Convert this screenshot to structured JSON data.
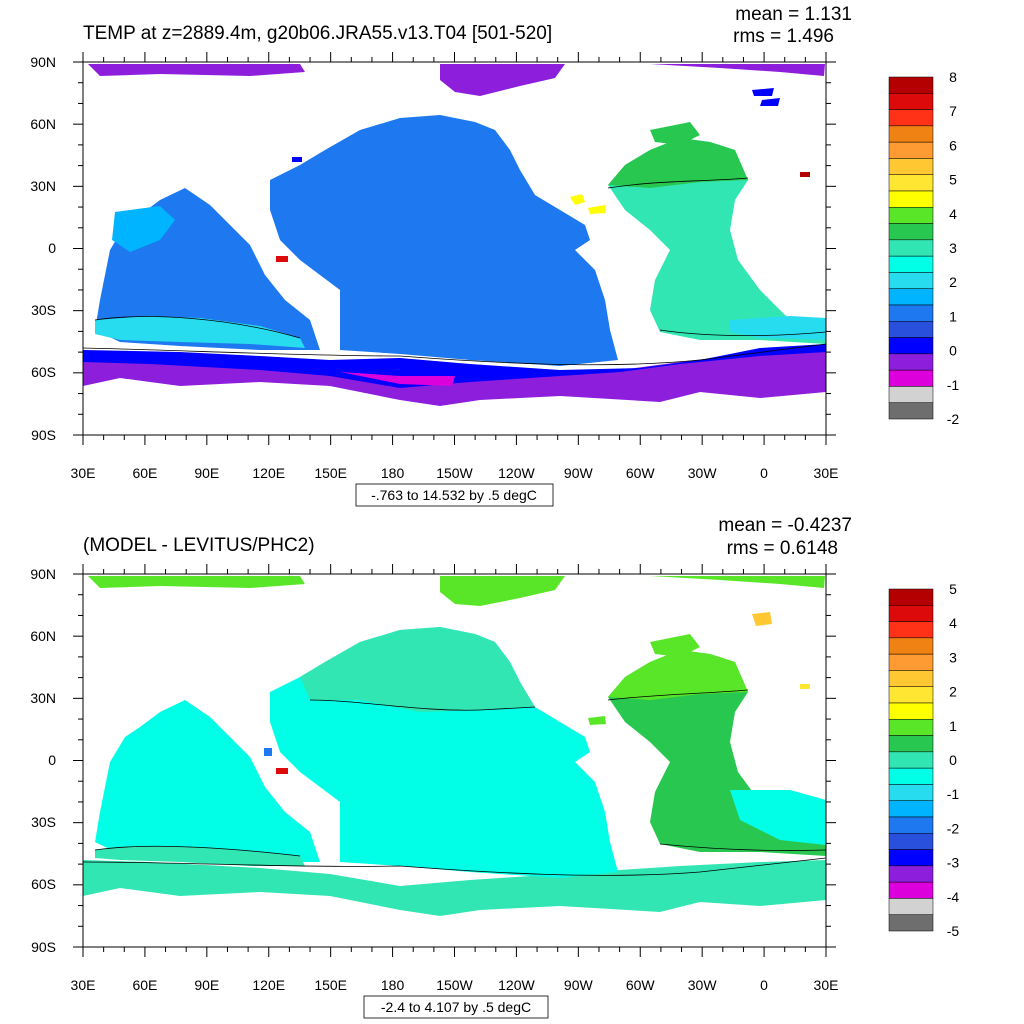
{
  "panels": [
    {
      "title": "TEMP at z=2889.4m, g20b06.JRA55.v13.T04 [501-520]",
      "mean_text": "mean = 1.131",
      "rms_text": "rms = 1.496",
      "range_text": "-.763 to 14.532 by .5 degC",
      "colorbar": {
        "labels": [
          "8",
          "7",
          "6",
          "5",
          "4",
          "3",
          "2",
          "1",
          "0",
          "-1",
          "-2"
        ],
        "colors": [
          "#b40000",
          "#dc0a0a",
          "#ff3218",
          "#f08214",
          "#ff9b32",
          "#ffc832",
          "#ffe632",
          "#ffff00",
          "#5ae628",
          "#28c850",
          "#32e6b4",
          "#00ffe6",
          "#28dcf0",
          "#00b4ff",
          "#1e78f0",
          "#2850dc",
          "#0000ff",
          "#8c1edc",
          "#dc00dc",
          "#d2d2d2",
          "#6e6e6e"
        ]
      }
    },
    {
      "title": "(MODEL - LEVITUS/PHC2)",
      "mean_text": "mean = -0.4237",
      "rms_text": "rms = 0.6148",
      "range_text": "-2.4 to 4.107 by .5 degC",
      "colorbar": {
        "labels": [
          "5",
          "4",
          "3",
          "2",
          "1",
          "0",
          "-1",
          "-2",
          "-3",
          "-4",
          "-5"
        ],
        "colors": [
          "#b40000",
          "#dc0a0a",
          "#ff3218",
          "#f08214",
          "#ff9b32",
          "#ffc832",
          "#ffe632",
          "#ffff00",
          "#5ae628",
          "#28c850",
          "#32e6b4",
          "#00ffe6",
          "#28dcf0",
          "#00b4ff",
          "#1e78f0",
          "#2850dc",
          "#0000ff",
          "#8c1edc",
          "#dc00dc",
          "#d2d2d2",
          "#6e6e6e"
        ]
      }
    }
  ],
  "axes": {
    "lat_labels": [
      "90N",
      "60N",
      "30N",
      "0",
      "30S",
      "60S",
      "90S"
    ],
    "lon_labels": [
      "30E",
      "60E",
      "90E",
      "120E",
      "150E",
      "180",
      "150W",
      "120W",
      "90W",
      "60W",
      "30W",
      "0",
      "30E"
    ]
  },
  "map_fields": {
    "top": {
      "ocean_fill": "#1e78f0",
      "atlantic_fill": "#32e6b4",
      "southern_fill": "#8c1edc",
      "arctic_fill": "#8c1edc"
    },
    "bottom": {
      "ocean_fill": "#00ffe6",
      "atlantic_fill": "#28c850",
      "southern_fill": "#32e6b4",
      "arctic_fill": "#5ae628"
    }
  }
}
